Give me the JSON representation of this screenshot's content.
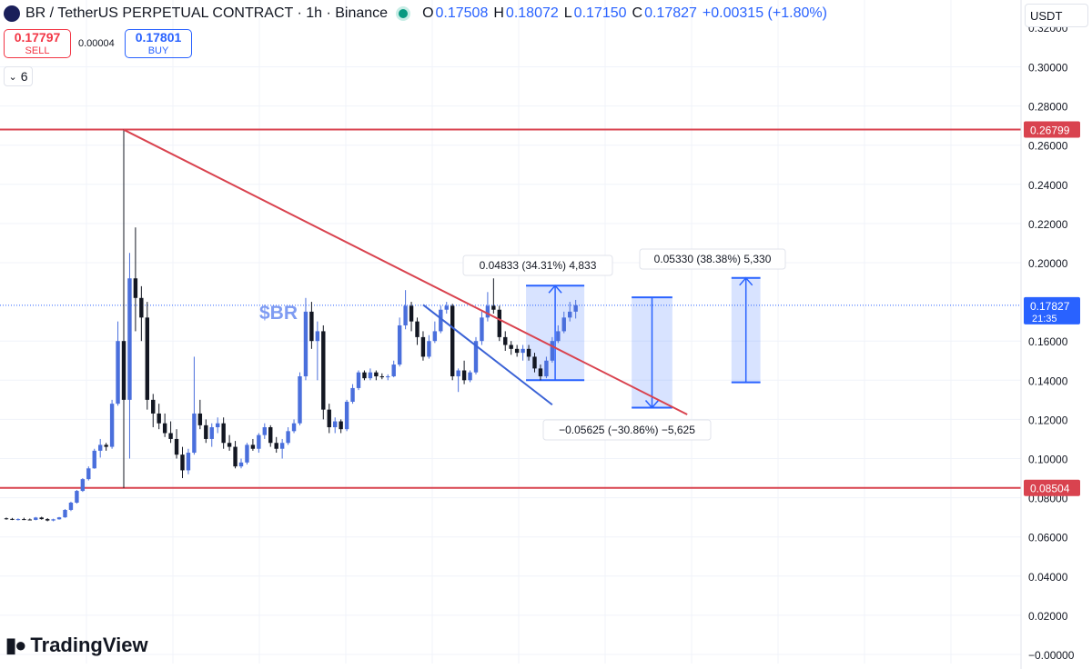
{
  "header": {
    "symbol": "BR / TetherUS PERPETUAL CONTRACT · 1h · Binance",
    "open_label": "O",
    "open": "0.17508",
    "high_label": "H",
    "high": "0.18072",
    "low_label": "L",
    "low": "0.17150",
    "close_label": "C",
    "close": "0.17827",
    "change": "+0.00315 (+1.80%)"
  },
  "trade": {
    "sell_price": "0.17797",
    "sell_label": "SELL",
    "spread": "0.00004",
    "buy_price": "0.17801",
    "buy_label": "BUY"
  },
  "indicators_toggle": "6",
  "currency": "USDT",
  "brand": "TradingView",
  "colors": {
    "up": "#4a6fdc",
    "down": "#131722",
    "level_line": "#d9434f",
    "trend_red": "#d9434f",
    "trend_blue": "#3b63d6",
    "last_price": "#2962ff"
  },
  "chart_data": {
    "type": "candlestick",
    "yaxis": {
      "ticks": [
        "0.30000",
        "0.28000",
        "0.26000",
        "0.24000",
        "0.22000",
        "0.20000",
        "0.16000",
        "0.14000",
        "0.12000",
        "0.10000",
        "0.08000",
        "0.06000",
        "0.04000",
        "0.02000",
        "−0.00000"
      ],
      "ylim": [
        0,
        0.3
      ]
    },
    "grid": true,
    "annotation_text": "$BR",
    "levels": [
      {
        "price": 0.26799,
        "label": "0.26799"
      },
      {
        "price": 0.08504,
        "label": "0.08504"
      }
    ],
    "last_price": {
      "price": 0.17827,
      "label": "0.17827",
      "countdown": "21:35"
    },
    "measurements": [
      {
        "label": "0.04833 (34.31%) 4,833",
        "from": 0.14,
        "to": 0.1883,
        "bar_from": 89,
        "bar_to": 98,
        "direction": "up"
      },
      {
        "label": "−0.05625 (−30.86%) −5,625",
        "from": 0.1823,
        "to": 0.126,
        "bar_from": 107,
        "bar_to": 113,
        "direction": "down"
      },
      {
        "label": "0.05330 (38.38%) 5,330",
        "from": 0.1389,
        "to": 0.1922,
        "bar_from": 124,
        "bar_to": 128,
        "direction": "up"
      }
    ],
    "trendlines": [
      {
        "color": "red",
        "from": {
          "bar": 20,
          "price": 0.2679
        },
        "to": {
          "bar": 116,
          "price": 0.1225
        }
      },
      {
        "color": "blue",
        "from": {
          "bar": 71,
          "price": 0.1785
        },
        "to": {
          "bar": 93,
          "price": 0.1275
        }
      }
    ],
    "candles": [
      [
        0.0695,
        0.0699,
        0.0688,
        0.0692
      ],
      [
        0.0692,
        0.0697,
        0.0686,
        0.0688
      ],
      [
        0.0688,
        0.0695,
        0.0684,
        0.0691
      ],
      [
        0.0691,
        0.0698,
        0.0686,
        0.0689
      ],
      [
        0.0689,
        0.0694,
        0.0685,
        0.0687
      ],
      [
        0.0687,
        0.0702,
        0.0685,
        0.0699
      ],
      [
        0.0699,
        0.0703,
        0.0688,
        0.0691
      ],
      [
        0.0691,
        0.0696,
        0.068,
        0.0684
      ],
      [
        0.0684,
        0.0693,
        0.068,
        0.069
      ],
      [
        0.069,
        0.0702,
        0.0688,
        0.07
      ],
      [
        0.07,
        0.0742,
        0.0698,
        0.0738
      ],
      [
        0.0738,
        0.078,
        0.0732,
        0.0775
      ],
      [
        0.0775,
        0.084,
        0.077,
        0.0835
      ],
      [
        0.0835,
        0.09,
        0.083,
        0.0895
      ],
      [
        0.0895,
        0.096,
        0.0888,
        0.095
      ],
      [
        0.095,
        0.105,
        0.0948,
        0.104
      ],
      [
        0.104,
        0.11,
        0.1005,
        0.107
      ],
      [
        0.107,
        0.108,
        0.104,
        0.106
      ],
      [
        0.106,
        0.13,
        0.105,
        0.128
      ],
      [
        0.128,
        0.17,
        0.127,
        0.16
      ],
      [
        0.16,
        0.268,
        0.085,
        0.13
      ],
      [
        0.13,
        0.205,
        0.1,
        0.192
      ],
      [
        0.192,
        0.218,
        0.165,
        0.182
      ],
      [
        0.182,
        0.188,
        0.16,
        0.172
      ],
      [
        0.172,
        0.18,
        0.125,
        0.13
      ],
      [
        0.13,
        0.133,
        0.116,
        0.123
      ],
      [
        0.123,
        0.128,
        0.115,
        0.118
      ],
      [
        0.118,
        0.123,
        0.111,
        0.113
      ],
      [
        0.113,
        0.119,
        0.108,
        0.11
      ],
      [
        0.11,
        0.115,
        0.1,
        0.102
      ],
      [
        0.102,
        0.106,
        0.09,
        0.094
      ],
      [
        0.094,
        0.105,
        0.092,
        0.103
      ],
      [
        0.103,
        0.152,
        0.102,
        0.123
      ],
      [
        0.123,
        0.13,
        0.115,
        0.117
      ],
      [
        0.117,
        0.12,
        0.108,
        0.11
      ],
      [
        0.11,
        0.118,
        0.106,
        0.116
      ],
      [
        0.116,
        0.121,
        0.113,
        0.118
      ],
      [
        0.118,
        0.121,
        0.105,
        0.108
      ],
      [
        0.108,
        0.112,
        0.104,
        0.106
      ],
      [
        0.106,
        0.109,
        0.095,
        0.096
      ],
      [
        0.096,
        0.1,
        0.095,
        0.098
      ],
      [
        0.098,
        0.108,
        0.097,
        0.107
      ],
      [
        0.107,
        0.11,
        0.104,
        0.105
      ],
      [
        0.105,
        0.113,
        0.103,
        0.112
      ],
      [
        0.112,
        0.118,
        0.11,
        0.116
      ],
      [
        0.116,
        0.117,
        0.106,
        0.108
      ],
      [
        0.108,
        0.111,
        0.103,
        0.105
      ],
      [
        0.105,
        0.11,
        0.1,
        0.108
      ],
      [
        0.108,
        0.116,
        0.107,
        0.114
      ],
      [
        0.114,
        0.12,
        0.113,
        0.118
      ],
      [
        0.118,
        0.144,
        0.117,
        0.142
      ],
      [
        0.142,
        0.182,
        0.14,
        0.175
      ],
      [
        0.175,
        0.18,
        0.156,
        0.16
      ],
      [
        0.16,
        0.17,
        0.14,
        0.165
      ],
      [
        0.165,
        0.168,
        0.12,
        0.125
      ],
      [
        0.125,
        0.128,
        0.113,
        0.116
      ],
      [
        0.116,
        0.121,
        0.113,
        0.119
      ],
      [
        0.119,
        0.12,
        0.113,
        0.115
      ],
      [
        0.115,
        0.13,
        0.114,
        0.129
      ],
      [
        0.129,
        0.138,
        0.128,
        0.136
      ],
      [
        0.136,
        0.145,
        0.135,
        0.144
      ],
      [
        0.144,
        0.145,
        0.14,
        0.141
      ],
      [
        0.141,
        0.146,
        0.14,
        0.144
      ],
      [
        0.144,
        0.145,
        0.14,
        0.142
      ],
      [
        0.142,
        0.1435,
        0.1405,
        0.1415
      ],
      [
        0.1415,
        0.143,
        0.14,
        0.142
      ],
      [
        0.142,
        0.15,
        0.1415,
        0.148
      ],
      [
        0.148,
        0.172,
        0.147,
        0.168
      ],
      [
        0.168,
        0.186,
        0.166,
        0.178
      ],
      [
        0.178,
        0.18,
        0.165,
        0.17
      ],
      [
        0.17,
        0.172,
        0.158,
        0.162
      ],
      [
        0.162,
        0.165,
        0.15,
        0.152
      ],
      [
        0.152,
        0.163,
        0.151,
        0.16
      ],
      [
        0.16,
        0.17,
        0.159,
        0.165
      ],
      [
        0.165,
        0.178,
        0.164,
        0.176
      ],
      [
        0.176,
        0.18,
        0.174,
        0.178
      ],
      [
        0.178,
        0.179,
        0.14,
        0.142
      ],
      [
        0.142,
        0.146,
        0.134,
        0.145
      ],
      [
        0.145,
        0.15,
        0.138,
        0.14
      ],
      [
        0.14,
        0.145,
        0.139,
        0.144
      ],
      [
        0.144,
        0.162,
        0.143,
        0.16
      ],
      [
        0.16,
        0.175,
        0.158,
        0.172
      ],
      [
        0.172,
        0.185,
        0.17,
        0.178
      ],
      [
        0.178,
        0.192,
        0.174,
        0.176
      ],
      [
        0.176,
        0.178,
        0.16,
        0.162
      ],
      [
        0.162,
        0.165,
        0.155,
        0.158
      ],
      [
        0.158,
        0.16,
        0.153,
        0.156
      ],
      [
        0.156,
        0.158,
        0.152,
        0.154
      ],
      [
        0.154,
        0.158,
        0.15,
        0.156
      ],
      [
        0.156,
        0.158,
        0.15,
        0.152
      ],
      [
        0.152,
        0.154,
        0.144,
        0.146
      ],
      [
        0.146,
        0.148,
        0.14,
        0.142
      ],
      [
        0.142,
        0.152,
        0.141,
        0.15
      ],
      [
        0.15,
        0.162,
        0.149,
        0.16
      ],
      [
        0.16,
        0.168,
        0.159,
        0.165
      ],
      [
        0.165,
        0.175,
        0.164,
        0.172
      ],
      [
        0.172,
        0.18,
        0.17,
        0.175
      ],
      [
        0.175,
        0.181,
        0.1715,
        0.1783
      ]
    ]
  }
}
